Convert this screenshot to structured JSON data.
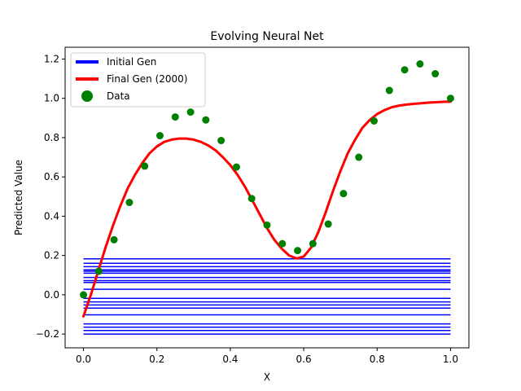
{
  "chart_data": {
    "type": "line",
    "title": "Evolving Neural Net",
    "xlabel": "X",
    "ylabel": "Predicted Value",
    "xlim": [
      -0.05,
      1.05
    ],
    "ylim": [
      -0.27,
      1.26
    ],
    "x_ticks": [
      "0.0",
      "0.2",
      "0.4",
      "0.6",
      "0.8",
      "1.0"
    ],
    "y_ticks": [
      "−0.2",
      "0.0",
      "0.2",
      "0.4",
      "0.6",
      "0.8",
      "1.0",
      "1.2"
    ],
    "grid": false,
    "legend_position": "top-left",
    "legend": [
      "Initial Gen",
      "Final Gen (2000)",
      "Data"
    ],
    "colors": {
      "initial": "#0000ff",
      "final": "#ff0000",
      "data": "#008000"
    },
    "initial_gen_levels": [
      0.183,
      0.16,
      0.143,
      0.127,
      0.12,
      0.11,
      0.088,
      0.072,
      0.063,
      0.028,
      -0.018,
      -0.036,
      -0.052,
      -0.068,
      -0.102,
      -0.148,
      -0.165,
      -0.182,
      -0.2
    ],
    "final_gen": {
      "x": [
        0.0,
        0.02,
        0.04,
        0.06,
        0.08,
        0.1,
        0.12,
        0.14,
        0.16,
        0.18,
        0.2,
        0.22,
        0.24,
        0.26,
        0.28,
        0.3,
        0.32,
        0.34,
        0.36,
        0.38,
        0.4,
        0.42,
        0.44,
        0.46,
        0.48,
        0.5,
        0.52,
        0.54,
        0.56,
        0.58,
        0.6,
        0.62,
        0.64,
        0.66,
        0.68,
        0.7,
        0.72,
        0.74,
        0.76,
        0.78,
        0.8,
        0.82,
        0.84,
        0.86,
        0.88,
        0.9,
        0.92,
        0.94,
        0.96,
        0.98,
        1.0
      ],
      "y": [
        -0.11,
        0.0,
        0.12,
        0.24,
        0.35,
        0.45,
        0.54,
        0.61,
        0.67,
        0.72,
        0.755,
        0.778,
        0.79,
        0.795,
        0.795,
        0.79,
        0.778,
        0.76,
        0.735,
        0.7,
        0.66,
        0.61,
        0.55,
        0.48,
        0.41,
        0.34,
        0.28,
        0.235,
        0.2,
        0.185,
        0.195,
        0.24,
        0.32,
        0.42,
        0.53,
        0.63,
        0.72,
        0.79,
        0.85,
        0.89,
        0.92,
        0.94,
        0.955,
        0.963,
        0.968,
        0.972,
        0.975,
        0.978,
        0.98,
        0.982,
        0.983
      ]
    },
    "data_points": {
      "x": [
        0.0,
        0.0417,
        0.0833,
        0.125,
        0.1667,
        0.2083,
        0.25,
        0.2917,
        0.3333,
        0.375,
        0.4167,
        0.4583,
        0.5,
        0.5417,
        0.5833,
        0.625,
        0.6667,
        0.7083,
        0.75,
        0.7917,
        0.8333,
        0.875,
        0.9167,
        0.9583,
        1.0
      ],
      "y": [
        0.0,
        0.12,
        0.28,
        0.47,
        0.655,
        0.81,
        0.905,
        0.93,
        0.89,
        0.785,
        0.65,
        0.49,
        0.355,
        0.26,
        0.225,
        0.26,
        0.36,
        0.515,
        0.7,
        0.885,
        1.04,
        1.145,
        1.175,
        1.125,
        1.0
      ]
    }
  }
}
